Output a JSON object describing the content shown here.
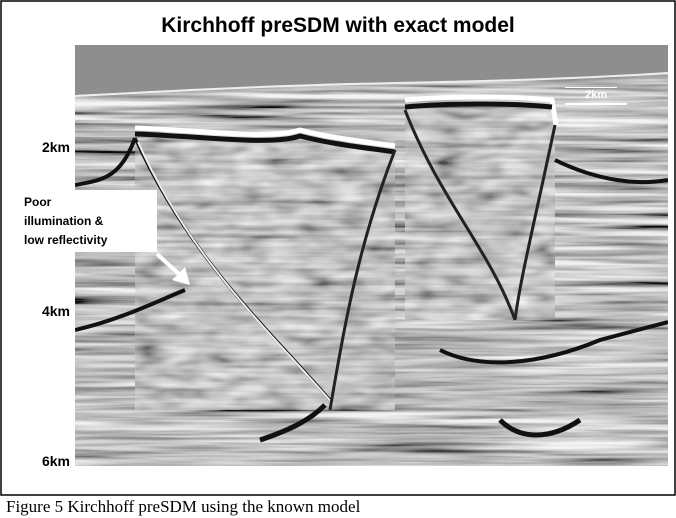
{
  "figure": {
    "title": "Kirchhoff preSDM with exact model",
    "depth_labels": [
      "2km",
      "4km",
      "6km"
    ],
    "annotation": [
      "Poor",
      "illumination &",
      "low reflectivity"
    ],
    "scale_bar": "2km"
  },
  "caption": "Figure 5 Kirchhoff preSDM using the known model"
}
